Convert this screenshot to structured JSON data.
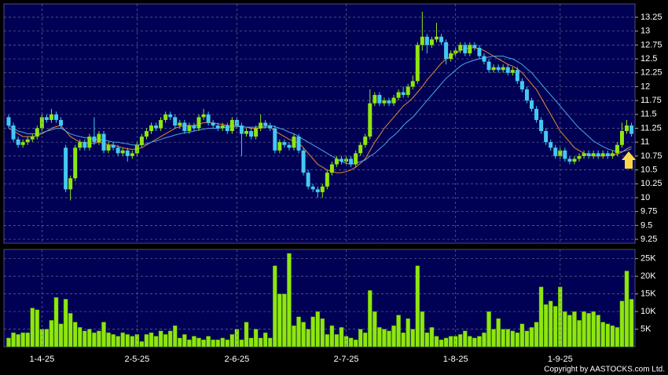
{
  "chart_data": [
    {
      "type": "candlestick",
      "open": [
        11.45,
        11.3,
        11.05,
        10.95,
        11.0,
        11.05,
        11.1,
        11.25,
        11.45,
        11.4,
        11.5,
        11.4,
        10.9,
        10.15,
        10.35,
        10.9,
        11.0,
        10.9,
        11.1,
        11.0,
        11.15,
        10.85,
        10.95,
        10.9,
        10.8,
        10.85,
        10.75,
        10.8,
        10.95,
        11.1,
        11.2,
        11.3,
        11.25,
        11.4,
        11.5,
        11.45,
        11.3,
        11.35,
        11.2,
        11.3,
        11.25,
        11.45,
        11.5,
        11.35,
        11.3,
        11.25,
        11.3,
        11.2,
        11.4,
        11.3,
        11.15,
        11.2,
        11.1,
        11.25,
        11.35,
        11.3,
        11.25,
        10.85,
        11.0,
        10.95,
        10.9,
        11.1,
        10.85,
        10.45,
        10.2,
        10.15,
        10.1,
        10.2,
        10.45,
        10.6,
        10.7,
        10.65,
        10.7,
        10.6,
        10.8,
        10.95,
        11.1,
        11.7,
        11.85,
        11.7,
        11.75,
        11.7,
        11.8,
        11.9,
        11.85,
        12.0,
        12.1,
        12.75,
        12.9,
        12.75,
        12.85,
        12.9,
        12.8,
        12.5,
        12.6,
        12.65,
        12.75,
        12.6,
        12.75,
        12.7,
        12.55,
        12.45,
        12.3,
        12.35,
        12.3,
        12.35,
        12.25,
        12.3,
        12.1,
        11.95,
        11.75,
        11.6,
        11.4,
        11.2,
        11.0,
        10.9,
        10.75,
        10.85,
        10.7,
        10.65,
        10.7,
        10.75,
        10.8,
        10.75,
        10.8,
        10.75,
        10.8,
        10.75,
        10.8,
        10.95,
        11.2,
        11.3
      ],
      "high": [
        11.5,
        11.35,
        11.1,
        11.05,
        11.1,
        11.15,
        11.3,
        11.5,
        11.5,
        11.6,
        11.55,
        11.45,
        10.95,
        10.4,
        10.95,
        11.05,
        11.05,
        11.15,
        11.45,
        11.2,
        11.2,
        11.0,
        11.0,
        10.95,
        10.9,
        10.9,
        10.85,
        11.0,
        11.15,
        11.25,
        11.35,
        11.35,
        11.45,
        11.55,
        11.55,
        11.5,
        11.4,
        11.4,
        11.35,
        11.35,
        11.5,
        11.6,
        11.55,
        11.4,
        11.35,
        11.35,
        11.35,
        11.45,
        11.45,
        11.35,
        11.25,
        11.25,
        11.3,
        11.5,
        11.4,
        11.35,
        11.3,
        11.05,
        11.05,
        11.0,
        11.15,
        11.15,
        10.9,
        10.5,
        10.25,
        10.2,
        10.25,
        10.5,
        10.65,
        10.75,
        10.75,
        10.75,
        10.75,
        10.85,
        11.0,
        11.15,
        11.95,
        11.9,
        11.9,
        11.8,
        11.8,
        11.85,
        11.95,
        12.0,
        12.05,
        12.2,
        12.8,
        13.35,
        12.95,
        12.9,
        13.15,
        12.95,
        12.85,
        12.65,
        12.7,
        12.8,
        12.8,
        12.8,
        12.8,
        12.75,
        12.6,
        12.5,
        12.4,
        12.4,
        12.4,
        12.4,
        12.35,
        12.35,
        12.15,
        12.0,
        11.8,
        11.65,
        11.45,
        11.25,
        11.05,
        10.95,
        10.9,
        10.9,
        10.75,
        10.75,
        10.8,
        10.85,
        10.85,
        10.85,
        10.85,
        10.85,
        10.85,
        10.85,
        11.0,
        11.35,
        11.4,
        11.35
      ],
      "low": [
        11.25,
        11.0,
        10.9,
        10.9,
        10.95,
        11.0,
        11.05,
        11.2,
        11.35,
        11.35,
        11.35,
        11.25,
        10.1,
        9.95,
        10.3,
        10.85,
        10.85,
        10.85,
        10.95,
        10.95,
        10.8,
        10.8,
        10.85,
        10.75,
        10.75,
        10.65,
        10.7,
        10.75,
        10.9,
        11.05,
        11.15,
        11.2,
        11.2,
        11.35,
        11.4,
        11.25,
        11.25,
        11.15,
        11.15,
        11.2,
        11.2,
        11.4,
        11.3,
        11.25,
        11.2,
        11.2,
        11.15,
        11.15,
        11.25,
        10.75,
        11.1,
        11.05,
        11.05,
        11.2,
        11.25,
        11.2,
        10.8,
        10.8,
        10.9,
        10.85,
        10.85,
        10.8,
        10.4,
        10.15,
        10.1,
        10.0,
        10.0,
        10.15,
        10.4,
        10.55,
        10.6,
        10.6,
        10.55,
        10.55,
        10.75,
        10.9,
        11.05,
        11.65,
        11.65,
        11.65,
        11.65,
        11.65,
        11.75,
        11.8,
        11.8,
        11.95,
        12.05,
        12.65,
        12.6,
        12.7,
        12.8,
        12.75,
        12.4,
        12.45,
        12.55,
        12.6,
        12.55,
        12.55,
        12.65,
        12.5,
        12.4,
        12.25,
        12.25,
        12.25,
        12.25,
        12.2,
        12.2,
        12.05,
        11.9,
        11.7,
        11.55,
        11.35,
        11.15,
        10.95,
        10.85,
        10.7,
        10.7,
        10.65,
        10.6,
        10.6,
        10.65,
        10.7,
        10.7,
        10.7,
        10.7,
        10.7,
        10.7,
        10.7,
        10.75,
        10.9,
        11.15,
        11.1
      ],
      "close": [
        11.3,
        11.05,
        10.95,
        11.0,
        11.05,
        11.1,
        11.25,
        11.45,
        11.4,
        11.5,
        11.4,
        11.3,
        10.15,
        10.35,
        10.9,
        11.0,
        10.9,
        11.1,
        11.0,
        11.15,
        10.85,
        10.95,
        10.9,
        10.8,
        10.85,
        10.75,
        10.8,
        10.95,
        11.1,
        11.2,
        11.3,
        11.25,
        11.4,
        11.5,
        11.45,
        11.3,
        11.35,
        11.2,
        11.3,
        11.25,
        11.45,
        11.5,
        11.35,
        11.3,
        11.25,
        11.3,
        11.2,
        11.4,
        11.3,
        11.15,
        11.2,
        11.1,
        11.25,
        11.35,
        11.3,
        11.25,
        10.85,
        11.0,
        10.95,
        10.9,
        11.1,
        10.85,
        10.45,
        10.2,
        10.15,
        10.1,
        10.2,
        10.45,
        10.6,
        10.7,
        10.65,
        10.7,
        10.6,
        10.8,
        10.95,
        11.1,
        11.7,
        11.85,
        11.7,
        11.75,
        11.7,
        11.8,
        11.9,
        11.85,
        12.0,
        12.1,
        12.75,
        12.9,
        12.75,
        12.85,
        12.9,
        12.8,
        12.5,
        12.6,
        12.65,
        12.75,
        12.6,
        12.75,
        12.7,
        12.55,
        12.45,
        12.3,
        12.35,
        12.3,
        12.35,
        12.25,
        12.3,
        12.1,
        11.95,
        11.75,
        11.6,
        11.4,
        11.2,
        11.0,
        10.9,
        10.75,
        10.85,
        10.7,
        10.65,
        10.7,
        10.75,
        10.8,
        10.75,
        10.8,
        10.75,
        10.8,
        10.75,
        10.8,
        10.95,
        11.2,
        11.3,
        11.15
      ],
      "up_color": "#8ee60f",
      "down_color": "#45c8f2",
      "series": [
        {
          "color": "#e8892f",
          "values": [
            11.25,
            11.2,
            11.15,
            11.1,
            11.1,
            11.1,
            11.12,
            11.15,
            11.2,
            11.25,
            11.28,
            11.3,
            11.2,
            11.1,
            11.05,
            11.0,
            11.0,
            10.98,
            10.98,
            11.0,
            10.98,
            10.95,
            10.95,
            10.92,
            10.9,
            10.88,
            10.87,
            10.88,
            10.9,
            10.95,
            11.0,
            11.05,
            11.1,
            11.15,
            11.2,
            11.25,
            11.28,
            11.3,
            11.3,
            11.3,
            11.32,
            11.35,
            11.35,
            11.35,
            11.33,
            11.32,
            11.3,
            11.3,
            11.3,
            11.28,
            11.27,
            11.25,
            11.25,
            11.25,
            11.27,
            11.27,
            11.2,
            11.15,
            11.1,
            11.05,
            11.02,
            10.98,
            10.9,
            10.8,
            10.7,
            10.6,
            10.55,
            10.5,
            10.47,
            10.45,
            10.45,
            10.47,
            10.5,
            10.55,
            10.62,
            10.7,
            10.85,
            11.0,
            11.12,
            11.25,
            11.35,
            11.45,
            11.55,
            11.65,
            11.72,
            11.8,
            11.9,
            12.0,
            12.12,
            12.22,
            12.32,
            12.42,
            12.5,
            12.55,
            12.6,
            12.65,
            12.68,
            12.7,
            12.7,
            12.68,
            12.65,
            12.6,
            12.55,
            12.5,
            12.45,
            12.4,
            12.37,
            12.32,
            12.25,
            12.15,
            12.05,
            11.95,
            11.8,
            11.65,
            11.5,
            11.35,
            11.2,
            11.1,
            11.0,
            10.9,
            10.85,
            10.8,
            10.77,
            10.75,
            10.75,
            10.75,
            10.76,
            10.77,
            10.78,
            10.82,
            10.88,
            10.92
          ]
        },
        {
          "color": "#4aa8e8",
          "values": [
            11.3,
            11.25,
            11.2,
            11.18,
            11.15,
            11.15,
            11.15,
            11.17,
            11.2,
            11.22,
            11.25,
            11.25,
            11.2,
            11.15,
            11.12,
            11.1,
            11.08,
            11.07,
            11.05,
            11.05,
            11.03,
            11.02,
            11.0,
            11.0,
            10.98,
            10.97,
            10.95,
            10.95,
            10.95,
            10.97,
            11.0,
            11.02,
            11.05,
            11.08,
            11.1,
            11.13,
            11.15,
            11.17,
            11.18,
            11.2,
            11.22,
            11.23,
            11.25,
            11.25,
            11.25,
            11.26,
            11.27,
            11.27,
            11.28,
            11.28,
            11.27,
            11.27,
            11.27,
            11.28,
            11.29,
            11.3,
            11.28,
            11.25,
            11.22,
            11.18,
            11.15,
            11.1,
            11.05,
            11.0,
            10.95,
            10.9,
            10.85,
            10.8,
            10.75,
            10.7,
            10.65,
            10.62,
            10.6,
            10.62,
            10.65,
            10.68,
            10.75,
            10.8,
            10.88,
            10.95,
            11.05,
            11.12,
            11.2,
            11.3,
            11.38,
            11.45,
            11.55,
            11.65,
            11.75,
            11.85,
            11.95,
            12.05,
            12.15,
            12.22,
            12.3,
            12.37,
            12.42,
            12.45,
            12.48,
            12.5,
            12.52,
            12.53,
            12.55,
            12.55,
            12.55,
            12.52,
            12.5,
            12.45,
            12.4,
            12.32,
            12.25,
            12.15,
            12.05,
            11.95,
            11.85,
            11.75,
            11.65,
            11.55,
            11.45,
            11.35,
            11.25,
            11.18,
            11.1,
            11.02,
            10.97,
            10.92,
            10.88,
            10.85,
            10.83,
            10.83,
            10.85,
            10.88
          ]
        }
      ],
      "ylim": [
        9.18,
        13.49
      ],
      "yticks": [
        9.25,
        9.5,
        9.75,
        10,
        10.25,
        10.5,
        10.75,
        11,
        11.25,
        11.5,
        11.75,
        12,
        12.25,
        12.5,
        12.75,
        13,
        13.25
      ],
      "grid": true
    },
    {
      "type": "bar",
      "categories": [
        null,
        null,
        null,
        null,
        null,
        null,
        null,
        "1-4-25",
        null,
        null,
        null,
        null,
        null,
        null,
        null,
        null,
        null,
        null,
        null,
        null,
        null,
        null,
        null,
        null,
        null,
        null,
        null,
        "2-5-25",
        null,
        null,
        null,
        null,
        null,
        null,
        null,
        null,
        null,
        null,
        null,
        null,
        null,
        null,
        null,
        null,
        null,
        null,
        null,
        null,
        "2-6-25",
        null,
        null,
        null,
        null,
        null,
        null,
        null,
        null,
        null,
        null,
        null,
        null,
        null,
        null,
        null,
        null,
        null,
        null,
        null,
        null,
        null,
        null,
        "2-7-25",
        null,
        null,
        null,
        null,
        null,
        null,
        null,
        null,
        null,
        null,
        null,
        null,
        null,
        null,
        null,
        null,
        null,
        null,
        null,
        null,
        null,
        null,
        "1-8-25",
        null,
        null,
        null,
        null,
        null,
        null,
        null,
        null,
        null,
        null,
        null,
        null,
        null,
        null,
        null,
        null,
        null,
        null,
        null,
        null,
        null,
        "1-9-25",
        null,
        null,
        null,
        null,
        null,
        null,
        null,
        null,
        null,
        null,
        null,
        null,
        null,
        null,
        null
      ],
      "values": [
        2500,
        4000,
        3500,
        4000,
        4000,
        11000,
        10500,
        5000,
        5000,
        7500,
        14000,
        6500,
        13500,
        9500,
        7000,
        5500,
        4500,
        5000,
        4000,
        4500,
        7000,
        4000,
        3500,
        3000,
        4000,
        3500,
        3000,
        3500,
        1500,
        3500,
        4000,
        3000,
        4500,
        3500,
        4500,
        6000,
        2500,
        3500,
        2000,
        3000,
        2500,
        2000,
        3000,
        2000,
        2000,
        2500,
        2000,
        3500,
        5000,
        2000,
        7000,
        2500,
        5000,
        2500,
        4000,
        2500,
        23000,
        15000,
        15000,
        26500,
        6000,
        8500,
        7000,
        5000,
        8500,
        10000,
        8000,
        3500,
        6000,
        3500,
        5500,
        3000,
        2500,
        2000,
        5000,
        4000,
        16000,
        10000,
        5500,
        5000,
        4500,
        6000,
        9000,
        4000,
        8000,
        5000,
        23000,
        10000,
        4000,
        5500,
        3000,
        2000,
        2500,
        3000,
        3000,
        3500,
        4500,
        3000,
        2500,
        3000,
        4000,
        10000,
        5000,
        8000,
        5000,
        5000,
        4500,
        4000,
        6500,
        4500,
        5500,
        7000,
        17000,
        12000,
        13000,
        11500,
        17000,
        10000,
        9000,
        10000,
        7500,
        10000,
        9500,
        10000,
        9000,
        7000,
        6500,
        6000,
        5500,
        13000,
        21500,
        13500
      ],
      "color": "#8ee60f",
      "ylim": [
        0,
        27600
      ],
      "yticks": [
        {
          "value": 5000,
          "label": "5K"
        },
        {
          "value": 10000,
          "label": "10K"
        },
        {
          "value": 15000,
          "label": "15K"
        },
        {
          "value": 20000,
          "label": "20K"
        },
        {
          "value": 25000,
          "label": "25K"
        }
      ],
      "grid": true,
      "annotation": "Copyright by AASTOCKS.com Ltd."
    }
  ]
}
